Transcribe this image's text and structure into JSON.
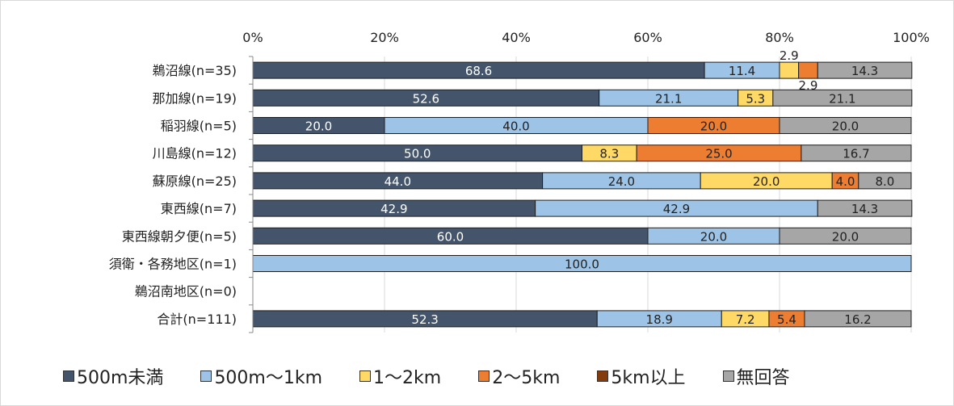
{
  "chart_data": {
    "type": "bar",
    "orientation": "horizontal",
    "stacked": "percent",
    "categories": [
      "鵜沼線(n=35)",
      "那加線(n=19)",
      "稲羽線(n=5)",
      "川島線(n=12)",
      "蘇原線(n=25)",
      "東西線(n=7)",
      "東西線朝夕便(n=5)",
      "須衛・各務地区(n=1)",
      "鵜沼南地区(n=0)",
      "合計(n=111)"
    ],
    "series": [
      {
        "name": "500m未満",
        "color": "#44546a",
        "label_color": "#ffffff",
        "values": [
          68.6,
          52.6,
          20.0,
          50.0,
          44.0,
          42.9,
          60.0,
          0,
          0,
          52.3
        ]
      },
      {
        "name": "500m～1km",
        "color": "#9dc3e6",
        "label_color": "#222222",
        "values": [
          11.4,
          21.1,
          40.0,
          0,
          24.0,
          42.9,
          20.0,
          100.0,
          0,
          18.9
        ]
      },
      {
        "name": "1～2km",
        "color": "#ffd966",
        "label_color": "#222222",
        "values": [
          2.9,
          5.3,
          0,
          8.3,
          20.0,
          0,
          0,
          0,
          0,
          7.2
        ]
      },
      {
        "name": "2～5km",
        "color": "#ed7d31",
        "label_color": "#222222",
        "values": [
          2.9,
          0,
          20.0,
          25.0,
          4.0,
          0,
          0,
          0,
          0,
          5.4
        ]
      },
      {
        "name": "5km以上",
        "color": "#843c0c",
        "label_color": "#ffffff",
        "values": [
          0,
          0,
          0,
          0,
          0,
          0,
          0,
          0,
          0,
          0
        ]
      },
      {
        "name": "無回答",
        "color": "#a6a6a6",
        "label_color": "#222222",
        "values": [
          14.3,
          21.1,
          20.0,
          16.7,
          8.0,
          14.3,
          20.0,
          0,
          0,
          16.2
        ]
      }
    ],
    "x_ticks": [
      "0%",
      "20%",
      "40%",
      "60%",
      "80%",
      "100%"
    ],
    "xlim": [
      0,
      100
    ],
    "xaxis_position": "top",
    "grid": true,
    "legend_position": "bottom"
  }
}
